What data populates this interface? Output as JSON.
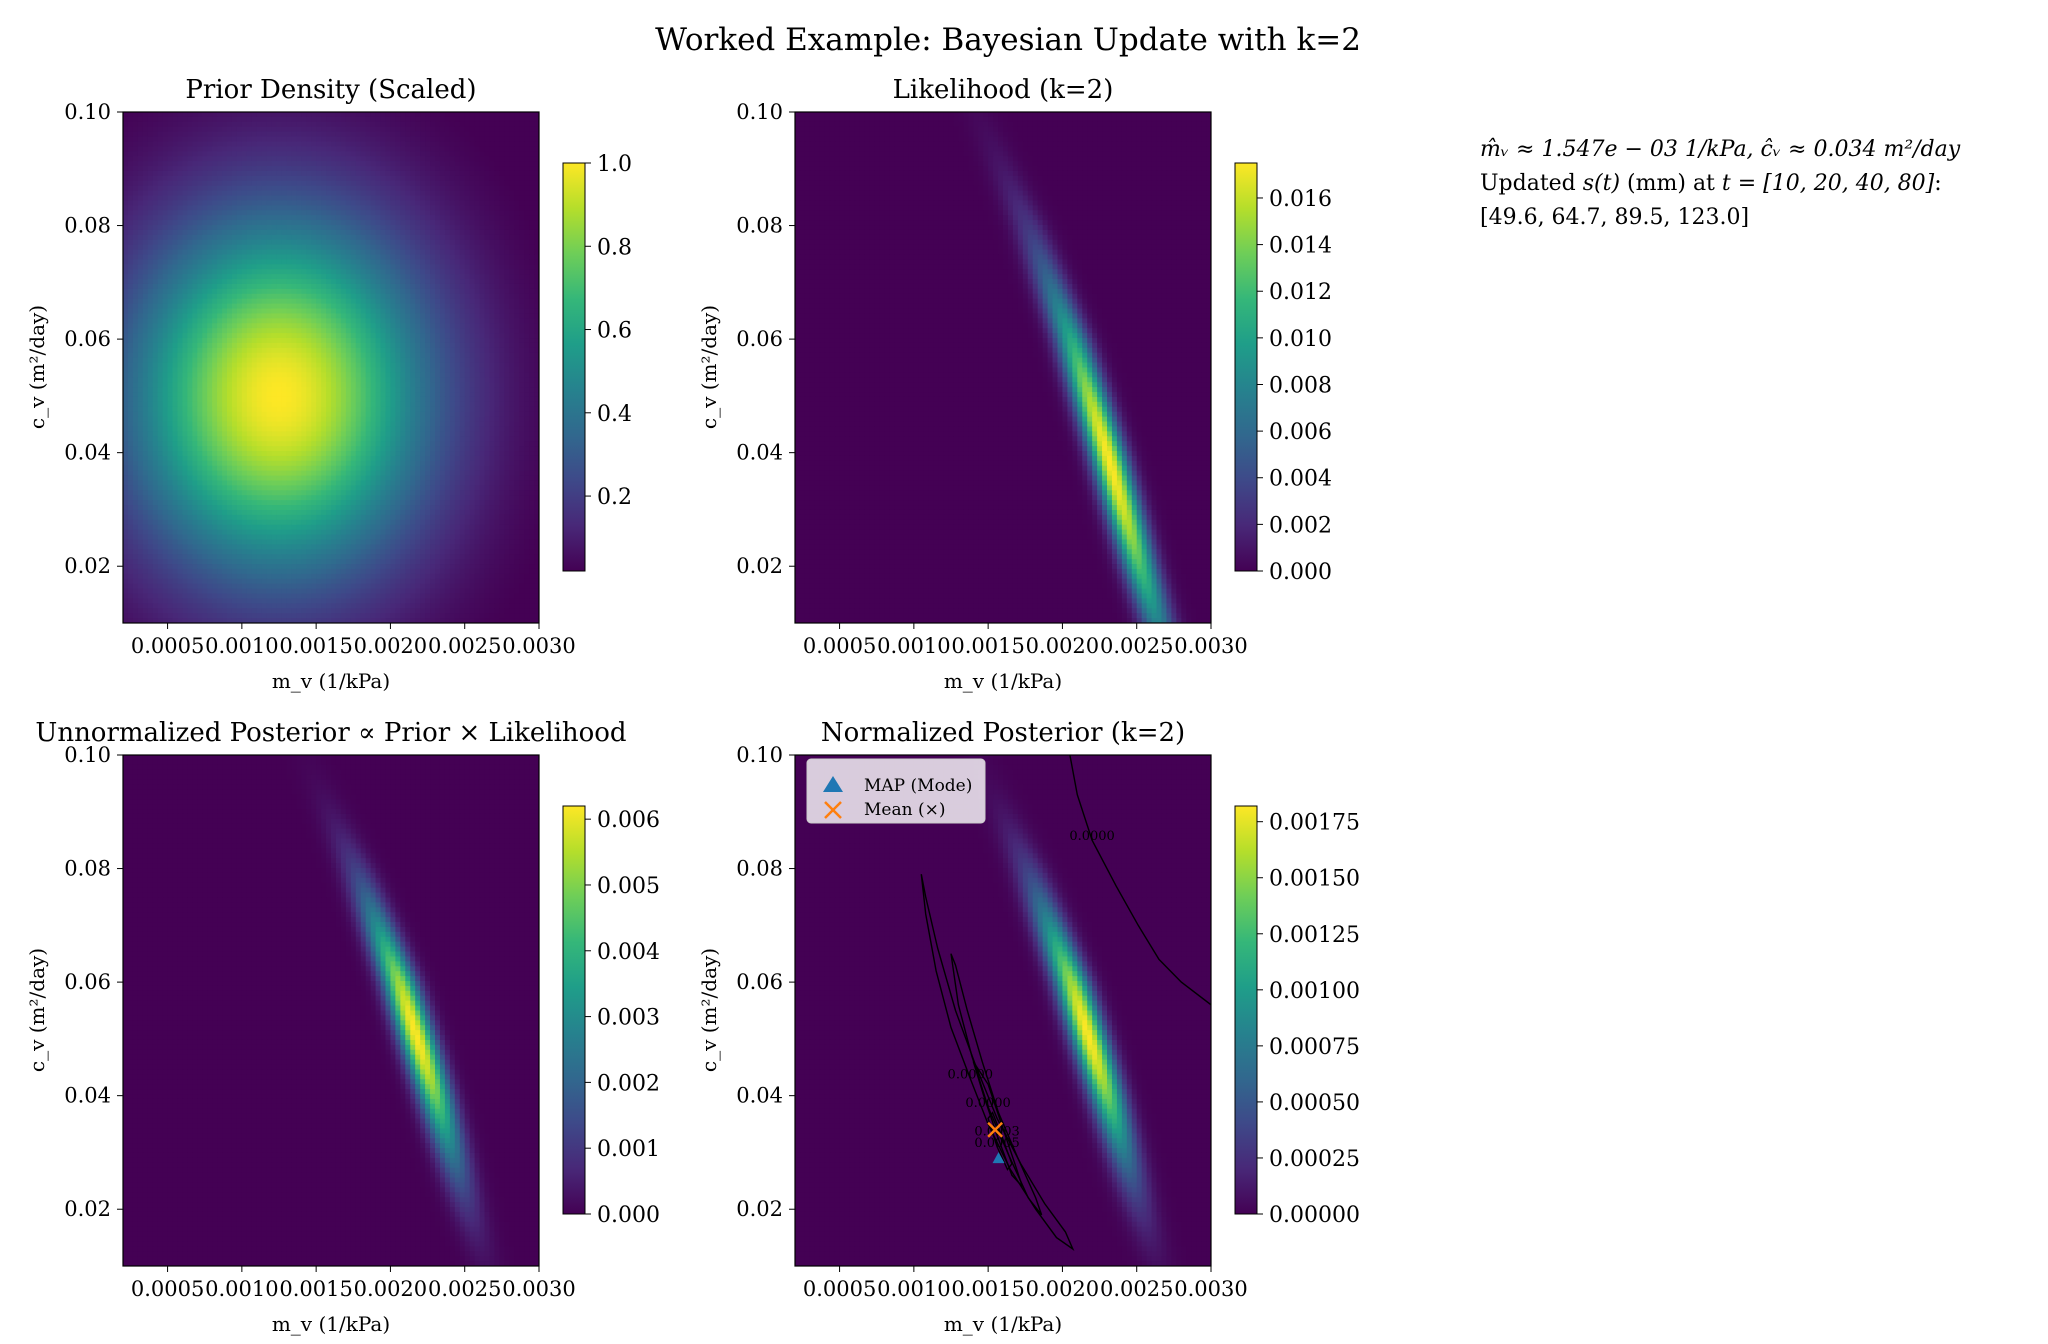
{
  "title": "Worked Example: Bayesian Update with k=2",
  "colors": {
    "viridis": [
      "#440154",
      "#482878",
      "#3e4989",
      "#31688e",
      "#26828e",
      "#1f9e89",
      "#35b779",
      "#6ece58",
      "#b5de2b",
      "#fde725"
    ],
    "contour": "#000000",
    "map_marker": "#1f77b4",
    "mean_marker": "#ff7f0e"
  },
  "annotation": {
    "line1": "m̂ᵥ ≈ 1.547e − 03 1/kPa,    ĉᵥ ≈ 0.034 m²/day",
    "line2_prefix": "Updated ",
    "line2_math1": "s(t)",
    "line2_mid": " (mm) at ",
    "line2_math2": "t = [10, 20, 40, 80]",
    "line2_suffix": ":",
    "line3": "[49.6, 64.7, 89.5, 123.0]"
  },
  "chart_data": [
    {
      "type": "heatmap",
      "title": "Prior Density (Scaled)",
      "xlabel": "m_v (1/kPa)",
      "ylabel": "c_v (m²/day)",
      "xlim": [
        0.0002,
        0.003
      ],
      "ylim": [
        0.01,
        0.1
      ],
      "x_ticks": [
        0.0005,
        0.001,
        0.0015,
        0.002,
        0.0025,
        0.003
      ],
      "x_tick_labels": [
        "0.0005",
        "0.0010",
        "0.0015",
        "0.0020",
        "0.0025",
        "0.0030"
      ],
      "y_ticks": [
        0.02,
        0.04,
        0.06,
        0.08,
        0.1
      ],
      "y_tick_labels": [
        "0.02",
        "0.04",
        "0.06",
        "0.08",
        "0.10"
      ],
      "field": {
        "kind": "gaussian",
        "mx": 0.00125,
        "sx": 0.0007,
        "my": 0.05,
        "sy": 0.022,
        "peak": 1.0
      },
      "colorbar": {
        "vmin": 0.02,
        "vmax": 1.0,
        "ticks": [
          0.2,
          0.4,
          0.6,
          0.8,
          1.0
        ],
        "tick_labels": [
          "0.2",
          "0.4",
          "0.6",
          "0.8",
          "1.0"
        ]
      }
    },
    {
      "type": "heatmap",
      "title": "Likelihood (k=2)",
      "xlabel": "m_v (1/kPa)",
      "ylabel": "c_v (m²/day)",
      "xlim": [
        0.0002,
        0.003
      ],
      "ylim": [
        0.01,
        0.1
      ],
      "x_ticks": [
        0.0005,
        0.001,
        0.0015,
        0.002,
        0.0025,
        0.003
      ],
      "x_tick_labels": [
        "0.0005",
        "0.0010",
        "0.0015",
        "0.0020",
        "0.0025",
        "0.0030"
      ],
      "y_ticks": [
        0.02,
        0.04,
        0.06,
        0.08,
        0.1
      ],
      "y_tick_labels": [
        "0.02",
        "0.04",
        "0.06",
        "0.08",
        "0.10"
      ],
      "field": {
        "kind": "ridge",
        "ridge_x": [
          [
            0.1,
            0.00143
          ],
          [
            0.08,
            0.00177
          ],
          [
            0.06,
            0.00206
          ],
          [
            0.04,
            0.0023
          ],
          [
            0.02,
            0.00252
          ],
          [
            0.01,
            0.00264
          ]
        ],
        "width": 8e-05,
        "peak_y": 0.038,
        "peak_spread": 0.022,
        "peak": 0.0175
      },
      "colorbar": {
        "vmin": 0.0,
        "vmax": 0.0175,
        "ticks": [
          0.0,
          0.002,
          0.004,
          0.006,
          0.008,
          0.01,
          0.012,
          0.014,
          0.016
        ],
        "tick_labels": [
          "0.000",
          "0.002",
          "0.004",
          "0.006",
          "0.008",
          "0.010",
          "0.012",
          "0.014",
          "0.016"
        ]
      }
    },
    {
      "type": "heatmap",
      "title": "Unnormalized Posterior ∝ Prior × Likelihood",
      "xlabel": "m_v (1/kPa)",
      "ylabel": "c_v (m²/day)",
      "xlim": [
        0.0002,
        0.003
      ],
      "ylim": [
        0.01,
        0.1
      ],
      "x_ticks": [
        0.0005,
        0.001,
        0.0015,
        0.002,
        0.0025,
        0.003
      ],
      "x_tick_labels": [
        "0.0005",
        "0.0010",
        "0.0015",
        "0.0020",
        "0.0025",
        "0.0030"
      ],
      "y_ticks": [
        0.02,
        0.04,
        0.06,
        0.08,
        0.1
      ],
      "y_tick_labels": [
        "0.02",
        "0.04",
        "0.06",
        "0.08",
        "0.10"
      ],
      "field": {
        "kind": "ridge",
        "ridge_x": [
          [
            0.1,
            0.00143
          ],
          [
            0.08,
            0.00177
          ],
          [
            0.06,
            0.00206
          ],
          [
            0.04,
            0.0023
          ],
          [
            0.02,
            0.00252
          ],
          [
            0.01,
            0.00264
          ]
        ],
        "width": 8e-05,
        "peak_y": 0.051,
        "peak_spread": 0.016,
        "peak": 0.0062
      },
      "colorbar": {
        "vmin": 0.0,
        "vmax": 0.0062,
        "ticks": [
          0.0,
          0.001,
          0.002,
          0.003,
          0.004,
          0.005,
          0.006
        ],
        "tick_labels": [
          "0.000",
          "0.001",
          "0.002",
          "0.003",
          "0.004",
          "0.005",
          "0.006"
        ]
      }
    },
    {
      "type": "heatmap",
      "title": "Normalized Posterior (k=2)",
      "xlabel": "m_v (1/kPa)",
      "ylabel": "c_v (m²/day)",
      "xlim": [
        0.0002,
        0.003
      ],
      "ylim": [
        0.01,
        0.1
      ],
      "x_ticks": [
        0.0005,
        0.001,
        0.0015,
        0.002,
        0.0025,
        0.003
      ],
      "x_tick_labels": [
        "0.0005",
        "0.0010",
        "0.0015",
        "0.0020",
        "0.0025",
        "0.0030"
      ],
      "y_ticks": [
        0.02,
        0.04,
        0.06,
        0.08,
        0.1
      ],
      "y_tick_labels": [
        "0.02",
        "0.04",
        "0.06",
        "0.08",
        "0.10"
      ],
      "field": {
        "kind": "ridge",
        "ridge_x": [
          [
            0.1,
            0.00143
          ],
          [
            0.08,
            0.00177
          ],
          [
            0.06,
            0.00206
          ],
          [
            0.04,
            0.0023
          ],
          [
            0.02,
            0.00252
          ],
          [
            0.01,
            0.00264
          ]
        ],
        "width": 8e-05,
        "peak_y": 0.051,
        "peak_spread": 0.016,
        "peak": 0.00182
      },
      "colorbar": {
        "vmin": 0.0,
        "vmax": 0.00182,
        "ticks": [
          0.0,
          0.00025,
          0.0005,
          0.00075,
          0.001,
          0.00125,
          0.0015,
          0.00175
        ],
        "tick_labels": [
          "0.00000",
          "0.00025",
          "0.00050",
          "0.00075",
          "0.00100",
          "0.00125",
          "0.00150",
          "0.00175"
        ]
      },
      "contours": [
        {
          "label": "0.0000",
          "points": [
            [
              0.00205,
              0.1
            ],
            [
              0.0021,
              0.093
            ],
            [
              0.0022,
              0.085
            ],
            [
              0.00236,
              0.077
            ],
            [
              0.00251,
              0.07
            ],
            [
              0.00265,
              0.064
            ],
            [
              0.0028,
              0.06
            ],
            [
              0.003,
              0.056
            ]
          ]
        },
        {
          "label": "0.0000",
          "closed": true,
          "points": [
            [
              0.00105,
              0.079
            ],
            [
              0.00108,
              0.072
            ],
            [
              0.00115,
              0.062
            ],
            [
              0.00125,
              0.052
            ],
            [
              0.00138,
              0.043
            ],
            [
              0.0015,
              0.035
            ],
            [
              0.00165,
              0.027
            ],
            [
              0.00182,
              0.02
            ],
            [
              0.00196,
              0.015
            ],
            [
              0.00207,
              0.013
            ],
            [
              0.00202,
              0.016
            ],
            [
              0.00188,
              0.021
            ],
            [
              0.00172,
              0.028
            ],
            [
              0.00156,
              0.036
            ],
            [
              0.00142,
              0.045
            ],
            [
              0.00128,
              0.055
            ],
            [
              0.00116,
              0.066
            ],
            [
              0.00108,
              0.075
            ]
          ]
        },
        {
          "label": "0.0000",
          "closed": true,
          "points": [
            [
              0.00125,
              0.065
            ],
            [
              0.0013,
              0.056
            ],
            [
              0.00139,
              0.047
            ],
            [
              0.0015,
              0.038
            ],
            [
              0.00163,
              0.03
            ],
            [
              0.00177,
              0.022
            ],
            [
              0.00186,
              0.019
            ],
            [
              0.00182,
              0.022
            ],
            [
              0.0017,
              0.029
            ],
            [
              0.00157,
              0.037
            ],
            [
              0.00146,
              0.046
            ],
            [
              0.00136,
              0.055
            ],
            [
              0.00128,
              0.063
            ]
          ]
        },
        {
          "label": "0.0003",
          "closed": true,
          "points": [
            [
              0.0014,
              0.046
            ],
            [
              0.00147,
              0.04
            ],
            [
              0.00156,
              0.033
            ],
            [
              0.00166,
              0.026
            ],
            [
              0.00173,
              0.024
            ],
            [
              0.00168,
              0.028
            ],
            [
              0.00159,
              0.035
            ],
            [
              0.0015,
              0.042
            ]
          ]
        },
        {
          "label": "0.0005",
          "closed": true,
          "points": [
            [
              0.0015,
              0.036
            ],
            [
              0.00156,
              0.031
            ],
            [
              0.00163,
              0.027
            ],
            [
              0.00166,
              0.028
            ],
            [
              0.00159,
              0.033
            ],
            [
              0.00153,
              0.037
            ]
          ]
        }
      ],
      "map_point": {
        "x": 0.00157,
        "y": 0.029,
        "label": "MAP (Mode)"
      },
      "mean_point": {
        "x": 0.001547,
        "y": 0.034,
        "label": "Mean (×)"
      }
    }
  ]
}
